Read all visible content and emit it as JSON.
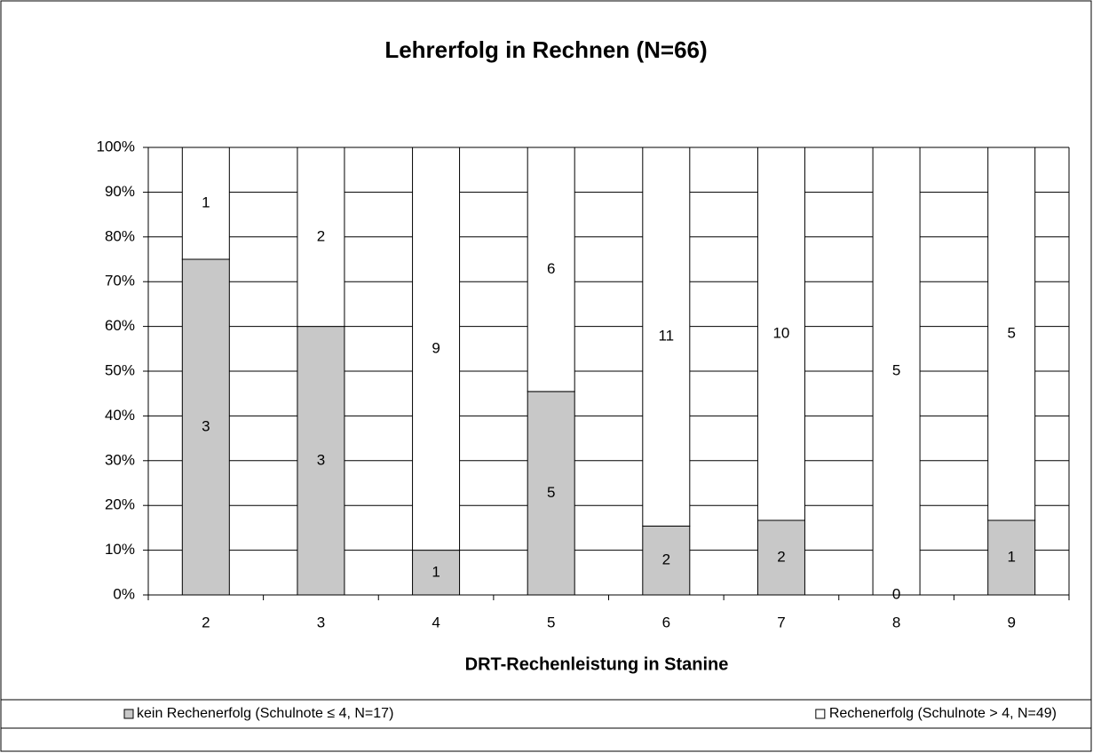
{
  "chart_data": {
    "type": "bar",
    "stacking": "percent",
    "title": "Lehrerfolg in Rechnen (N=66)",
    "xlabel": "DRT-Rechenleistung in Stanine",
    "categories": [
      "2",
      "3",
      "4",
      "5",
      "6",
      "7",
      "8",
      "9"
    ],
    "series": [
      {
        "name": "kein Rechenerfolg (Schulnote ≤ 4, N=17)",
        "color": "#c8c8c8",
        "values": [
          3,
          3,
          1,
          5,
          2,
          2,
          0,
          1
        ]
      },
      {
        "name": "Rechenerfolg (Schulnote > 4, N=49)",
        "color": "#ffffff",
        "values": [
          1,
          2,
          9,
          6,
          11,
          10,
          5,
          5
        ]
      }
    ],
    "ylim": [
      0,
      100
    ],
    "yticks": [
      {
        "value": 0,
        "label": "0%"
      },
      {
        "value": 10,
        "label": "10%"
      },
      {
        "value": 20,
        "label": "20%"
      },
      {
        "value": 30,
        "label": "30%"
      },
      {
        "value": 40,
        "label": "40%"
      },
      {
        "value": 50,
        "label": "50%"
      },
      {
        "value": 60,
        "label": "60%"
      },
      {
        "value": 70,
        "label": "70%"
      },
      {
        "value": 80,
        "label": "80%"
      },
      {
        "value": 90,
        "label": "90%"
      },
      {
        "value": 100,
        "label": "100%"
      }
    ],
    "grid": true,
    "legend": "bottom"
  }
}
